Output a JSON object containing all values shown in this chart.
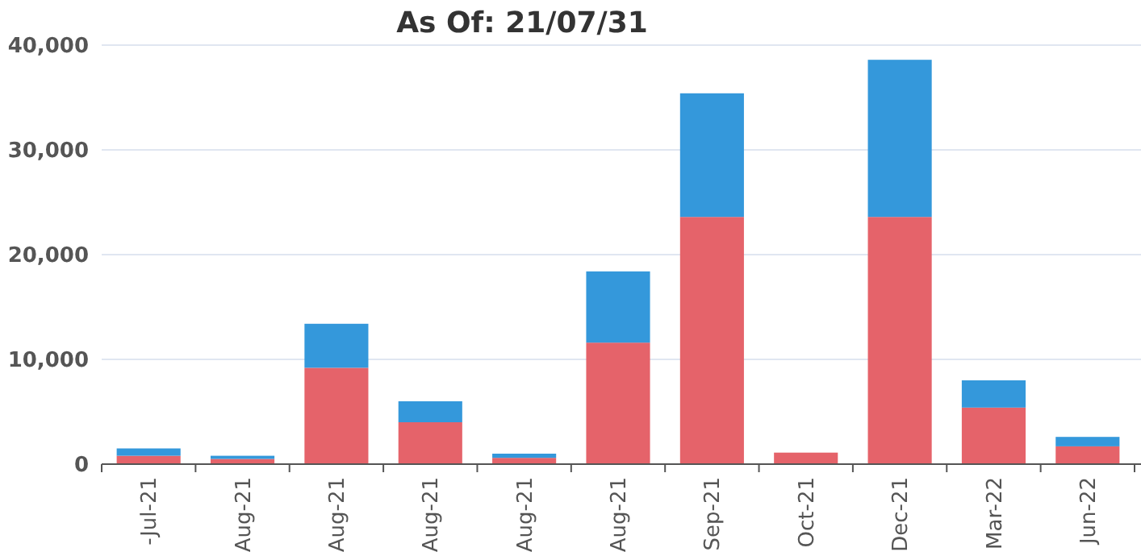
{
  "chart_data": {
    "type": "bar",
    "title": "As Of: 21/07/31",
    "stacked": true,
    "grid": "y",
    "categories": [
      "-Jul-21",
      "Aug-21",
      "Aug-21",
      "Aug-21",
      "Aug-21",
      "Aug-21",
      "Sep-21",
      "Oct-21",
      "Dec-21",
      "Mar-22",
      "Jun-22"
    ],
    "series": [
      {
        "color": "#e5636a",
        "values": [
          800,
          500,
          9200,
          4000,
          600,
          11600,
          23600,
          1100,
          23600,
          5400,
          1700
        ]
      },
      {
        "color": "#3498db",
        "values": [
          700,
          300,
          4200,
          2000,
          400,
          6800,
          11800,
          0,
          15000,
          2600,
          900
        ]
      }
    ],
    "ylim": [
      0,
      40000
    ],
    "yticks": [
      {
        "value": 0,
        "label": "0"
      },
      {
        "value": 10000,
        "label": "10,000"
      },
      {
        "value": 20000,
        "label": "20,000"
      },
      {
        "value": 30000,
        "label": "30,000"
      },
      {
        "value": 40000,
        "label": "40,000"
      }
    ]
  }
}
